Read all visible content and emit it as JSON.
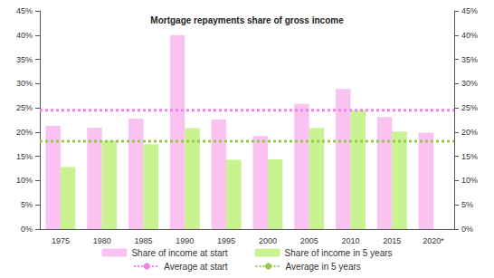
{
  "chart_data": {
    "type": "bar",
    "title": "Mortgage repayments share of gross income",
    "categories": [
      "1975",
      "1980",
      "1985",
      "1990",
      "1995",
      "2000",
      "2005",
      "2010",
      "2015",
      "2020*"
    ],
    "series": [
      {
        "name": "Share of income at start",
        "type": "bar",
        "color": "#f9c2f1",
        "values": [
          21.3,
          20.9,
          22.8,
          40.0,
          22.6,
          19.2,
          25.8,
          28.9,
          23.1,
          19.9
        ]
      },
      {
        "name": "Share of income in 5 years",
        "type": "bar",
        "color": "#c9f290",
        "values": [
          12.8,
          18.2,
          17.5,
          20.8,
          14.3,
          14.4,
          20.8,
          24.5,
          20.1,
          null
        ]
      },
      {
        "name": "Average at start",
        "type": "line",
        "line_style": "dotted",
        "color": "#ee82e6",
        "values": [
          24.5,
          24.5,
          24.5,
          24.5,
          24.5,
          24.5,
          24.5,
          24.5,
          24.5,
          24.5
        ]
      },
      {
        "name": "Average in 5 years",
        "type": "line",
        "line_style": "dotted",
        "color": "#99c94c",
        "values": [
          18.1,
          18.1,
          18.1,
          18.1,
          18.1,
          18.1,
          18.1,
          18.1,
          18.1,
          18.1
        ]
      }
    ],
    "ylim": [
      0,
      45
    ],
    "yticks": [
      {
        "value": 0,
        "label": "0%"
      },
      {
        "value": 5,
        "label": "5%"
      },
      {
        "value": 10,
        "label": "10%"
      },
      {
        "value": 15,
        "label": "15%"
      },
      {
        "value": 20,
        "label": "20%"
      },
      {
        "value": 25,
        "label": "25%"
      },
      {
        "value": 30,
        "label": "30%"
      },
      {
        "value": 35,
        "label": "35%"
      },
      {
        "value": 40,
        "label": "40%"
      },
      {
        "value": 45,
        "label": "45%"
      }
    ],
    "y2lim": [
      0,
      45
    ],
    "y2ticks": [
      {
        "value": 0,
        "label": "0%"
      },
      {
        "value": 5,
        "label": "5%"
      },
      {
        "value": 10,
        "label": "10%"
      },
      {
        "value": 15,
        "label": "15%"
      },
      {
        "value": 20,
        "label": "20%"
      },
      {
        "value": 25,
        "label": "25%"
      },
      {
        "value": 30,
        "label": "30%"
      },
      {
        "value": 35,
        "label": "35%"
      },
      {
        "value": 40,
        "label": "40%"
      },
      {
        "value": 45,
        "label": "45%"
      }
    ],
    "grid": false,
    "legend": "bottom"
  }
}
